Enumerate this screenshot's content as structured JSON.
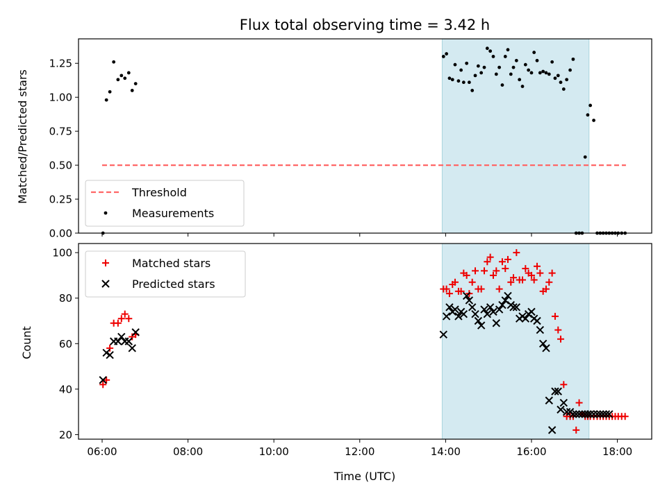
{
  "colors": {
    "threshold": "#ff6666",
    "measurement": "#000000",
    "matched": "#ee0000",
    "predicted": "#000000",
    "band_fill": "#d4eaf1",
    "band_edge": "#a9d5de"
  },
  "chart_data": [
    {
      "type": "scatter",
      "title": "Flux total observing time = 3.42 h",
      "xlabel": "",
      "ylabel": "Matched/Predicted stars",
      "x_unit": "hours UTC",
      "xlim": [
        5.45,
        18.8
      ],
      "ylim": [
        0,
        1.43
      ],
      "yticks": [
        0.0,
        0.25,
        0.5,
        0.75,
        1.0,
        1.25
      ],
      "ytick_labels": [
        "0.00",
        "0.25",
        "0.50",
        "0.75",
        "1.00",
        "1.25"
      ],
      "highlight_band": [
        13.92,
        17.34
      ],
      "legend": {
        "position": "lower-left",
        "entries": [
          "Threshold",
          "Measurements"
        ]
      },
      "series": [
        {
          "name": "Threshold",
          "style": "dashed-line",
          "x": [
            6.0,
            18.2
          ],
          "y": [
            0.5,
            0.5
          ]
        },
        {
          "name": "Measurements",
          "style": "dot",
          "x": [
            6.02,
            6.1,
            6.18,
            6.27,
            6.37,
            6.45,
            6.53,
            6.62,
            6.7,
            6.78,
            13.95,
            14.02,
            14.09,
            14.16,
            14.22,
            14.3,
            14.36,
            14.42,
            14.49,
            14.55,
            14.62,
            14.69,
            14.76,
            14.83,
            14.9,
            14.97,
            15.04,
            15.11,
            15.18,
            15.25,
            15.32,
            15.39,
            15.45,
            15.52,
            15.58,
            15.65,
            15.72,
            15.79,
            15.86,
            15.93,
            16.0,
            16.06,
            16.13,
            16.2,
            16.27,
            16.34,
            16.41,
            16.48,
            16.55,
            16.62,
            16.68,
            16.75,
            16.82,
            16.9,
            16.97,
            17.04,
            17.11,
            17.18,
            17.25,
            17.31,
            17.37,
            17.45,
            17.53,
            17.6,
            17.67,
            17.74,
            17.81,
            17.88,
            17.95,
            18.02,
            18.1,
            18.18
          ],
          "y": [
            0.0,
            0.98,
            1.04,
            1.26,
            1.13,
            1.16,
            1.14,
            1.18,
            1.05,
            1.1,
            1.3,
            1.32,
            1.14,
            1.13,
            1.24,
            1.12,
            1.2,
            1.11,
            1.25,
            1.11,
            1.05,
            1.16,
            1.23,
            1.18,
            1.22,
            1.36,
            1.34,
            1.3,
            1.17,
            1.22,
            1.09,
            1.3,
            1.35,
            1.17,
            1.22,
            1.27,
            1.13,
            1.08,
            1.24,
            1.2,
            1.18,
            1.33,
            1.27,
            1.18,
            1.19,
            1.18,
            1.17,
            1.26,
            1.14,
            1.16,
            1.11,
            1.06,
            1.13,
            1.2,
            1.28,
            0.0,
            0.0,
            0.0,
            0.56,
            0.87,
            0.94,
            0.83,
            0.0,
            0.0,
            0.0,
            0.0,
            0.0,
            0.0,
            0.0,
            0.0,
            0.0,
            0.0
          ]
        }
      ]
    },
    {
      "type": "scatter",
      "title": "",
      "xlabel": "Time (UTC)",
      "ylabel": "Count",
      "x_unit": "hours UTC",
      "xlim": [
        5.45,
        18.8
      ],
      "ylim": [
        18,
        104
      ],
      "yticks": [
        20,
        40,
        60,
        80,
        100
      ],
      "ytick_labels": [
        "20",
        "40",
        "60",
        "80",
        "100"
      ],
      "xticks": [
        6,
        8,
        10,
        12,
        14,
        16,
        18
      ],
      "xtick_labels": [
        "06:00",
        "08:00",
        "10:00",
        "12:00",
        "14:00",
        "16:00",
        "18:00"
      ],
      "highlight_band": [
        13.92,
        17.34
      ],
      "legend": {
        "position": "upper-left",
        "entries": [
          "Matched stars",
          "Predicted stars"
        ]
      },
      "series": [
        {
          "name": "Matched stars",
          "marker": "plus",
          "x": [
            6.02,
            6.1,
            6.18,
            6.27,
            6.37,
            6.45,
            6.53,
            6.62,
            6.7,
            6.78,
            13.95,
            14.02,
            14.09,
            14.16,
            14.22,
            14.3,
            14.36,
            14.42,
            14.49,
            14.55,
            14.62,
            14.69,
            14.76,
            14.83,
            14.9,
            14.97,
            15.04,
            15.11,
            15.18,
            15.25,
            15.32,
            15.39,
            15.45,
            15.52,
            15.58,
            15.65,
            15.72,
            15.79,
            15.86,
            15.93,
            16.0,
            16.06,
            16.13,
            16.2,
            16.27,
            16.34,
            16.41,
            16.48,
            16.55,
            16.62,
            16.68,
            16.75,
            16.82,
            16.9,
            16.97,
            17.04,
            17.11,
            17.18,
            17.25,
            17.31,
            17.37,
            17.45,
            17.53,
            17.6,
            17.67,
            17.74,
            17.81,
            17.88,
            17.95,
            18.02,
            18.1,
            18.18
          ],
          "y": [
            42,
            44,
            58,
            69,
            69,
            71,
            73,
            71,
            63,
            64,
            84,
            84,
            82,
            86,
            87,
            83,
            83,
            91,
            90,
            82,
            87,
            92,
            84,
            84,
            92,
            96,
            98,
            90,
            92,
            84,
            96,
            93,
            97,
            87,
            89,
            100,
            88,
            88,
            93,
            91,
            90,
            88,
            94,
            91,
            83,
            84,
            87,
            91,
            72,
            66,
            62,
            42,
            28,
            28,
            28,
            22,
            34,
            29,
            28,
            28,
            28,
            28,
            28,
            28,
            28,
            28,
            28,
            28,
            28,
            28,
            28,
            28
          ]
        },
        {
          "name": "Predicted stars",
          "marker": "cross",
          "x": [
            6.02,
            6.1,
            6.18,
            6.27,
            6.37,
            6.45,
            6.53,
            6.62,
            6.7,
            6.78,
            13.95,
            14.02,
            14.09,
            14.16,
            14.22,
            14.3,
            14.36,
            14.42,
            14.49,
            14.55,
            14.62,
            14.69,
            14.76,
            14.83,
            14.9,
            14.97,
            15.04,
            15.11,
            15.18,
            15.25,
            15.32,
            15.39,
            15.45,
            15.52,
            15.58,
            15.65,
            15.72,
            15.79,
            15.86,
            15.93,
            16.0,
            16.06,
            16.13,
            16.2,
            16.27,
            16.34,
            16.41,
            16.48,
            16.55,
            16.62,
            16.68,
            16.75,
            16.82,
            16.9,
            16.97,
            17.04,
            17.11,
            17.18,
            17.25,
            17.31,
            17.37,
            17.45,
            17.53,
            17.6,
            17.67,
            17.74,
            17.81
          ],
          "y": [
            44,
            56,
            55,
            61,
            61,
            63,
            61,
            61,
            58,
            65,
            64,
            72,
            76,
            74,
            75,
            72,
            74,
            73,
            81,
            79,
            76,
            73,
            70,
            68,
            75,
            73,
            76,
            74,
            69,
            75,
            77,
            79,
            81,
            77,
            76,
            76,
            71,
            72,
            71,
            73,
            74,
            71,
            70,
            66,
            60,
            58,
            35,
            22,
            39,
            39,
            31,
            34,
            30,
            30,
            29,
            29,
            29,
            29,
            29,
            29,
            29,
            29,
            29,
            29,
            29,
            29,
            29
          ]
        }
      ]
    }
  ]
}
